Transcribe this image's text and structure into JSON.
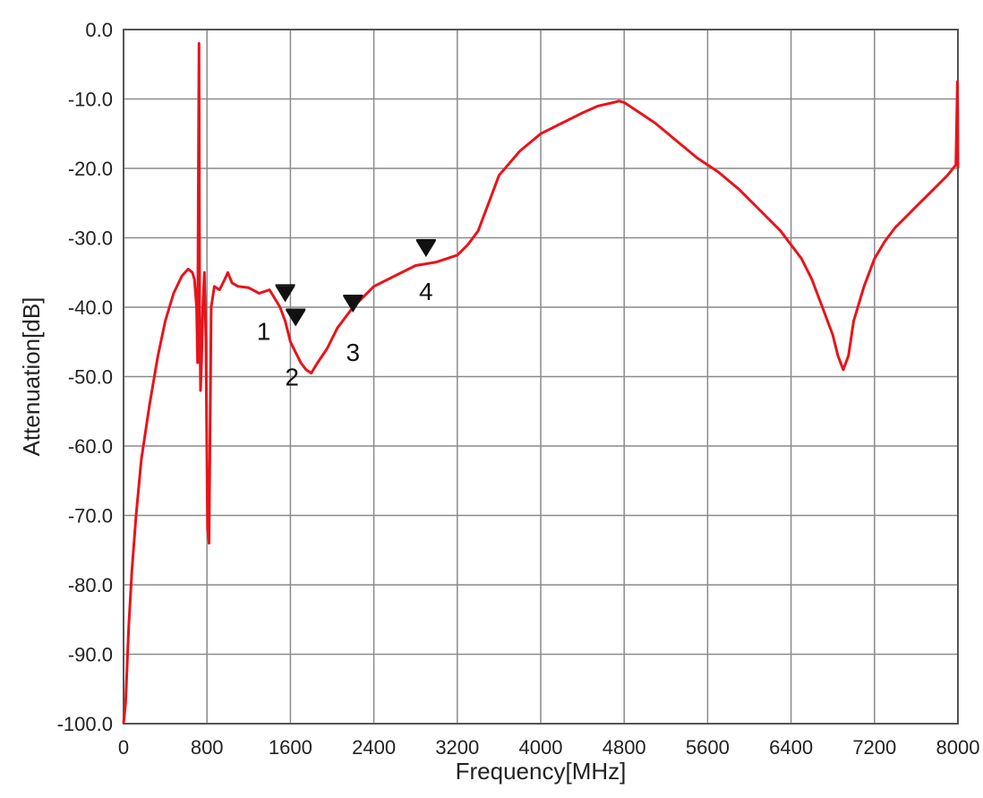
{
  "chart_data": {
    "type": "line",
    "title": "",
    "xlabel": "Frequency[MHz]",
    "ylabel": "Attenuation[dB]",
    "xlim": [
      0,
      8000
    ],
    "ylim": [
      -100,
      0
    ],
    "grid": true,
    "x_ticks": [
      "0",
      "800",
      "1600",
      "2400",
      "3200",
      "4000",
      "4800",
      "5600",
      "6400",
      "7200",
      "8000"
    ],
    "y_ticks": [
      "0.0",
      "-10.0",
      "-20.0",
      "-30.0",
      "-40.0",
      "-50.0",
      "-60.0",
      "-70.0",
      "-80.0",
      "-90.0",
      "-100.0"
    ],
    "line_color": "#e8141b",
    "series": [
      {
        "x": [
          0,
          20,
          50,
          80,
          120,
          170,
          250,
          330,
          400,
          480,
          560,
          620,
          660,
          680,
          700,
          710,
          718,
          724,
          730,
          738,
          748,
          760,
          775,
          790,
          805,
          820,
          840,
          870,
          920,
          970,
          1000,
          1040,
          1100,
          1200,
          1300,
          1400,
          1500,
          1550,
          1600,
          1650,
          1700,
          1750,
          1800,
          1860,
          1950,
          2050,
          2200,
          2400,
          2600,
          2800,
          3000,
          3200,
          3300,
          3400,
          3450,
          3500,
          3600,
          3800,
          4000,
          4200,
          4400,
          4550,
          4700,
          4750,
          4800,
          4900,
          5100,
          5300,
          5500,
          5700,
          5900,
          6100,
          6300,
          6400,
          6500,
          6600,
          6700,
          6800,
          6850,
          6900,
          6950,
          7000,
          7100,
          7200,
          7300,
          7400,
          7500,
          7600,
          7700,
          7800,
          7900,
          7980,
          7990,
          7995,
          7998,
          8000
        ],
        "y": [
          -100,
          -97,
          -86,
          -78,
          -70,
          -62,
          -54,
          -47,
          -42,
          -38,
          -35.5,
          -34.5,
          -35,
          -36,
          -40,
          -48,
          -20,
          -2,
          -40,
          -52,
          -48,
          -40,
          -35,
          -45,
          -72,
          -74,
          -40,
          -37,
          -37.5,
          -36,
          -35,
          -36.5,
          -37,
          -37.2,
          -38,
          -37.5,
          -40,
          -42,
          -45,
          -46.5,
          -48,
          -49,
          -49.5,
          -48,
          -46,
          -43,
          -40,
          -37,
          -35.5,
          -34,
          -33.5,
          -32.5,
          -31,
          -29,
          -27,
          -25,
          -21,
          -17.5,
          -15,
          -13.5,
          -12,
          -11,
          -10.5,
          -10.3,
          -10.5,
          -11.5,
          -13.5,
          -16,
          -18.5,
          -20.5,
          -23,
          -26,
          -29,
          -31,
          -33,
          -36,
          -40,
          -44,
          -47,
          -49,
          -47,
          -42,
          -37,
          -33,
          -30.5,
          -28.5,
          -27,
          -25.5,
          -24,
          -22.5,
          -21,
          -19.5,
          -12,
          -7.5,
          -12,
          -20
        ]
      }
    ],
    "markers": [
      {
        "label": "1",
        "x": 1550,
        "y": -38.5
      },
      {
        "label": "2",
        "x": 1650,
        "y": -42
      },
      {
        "label": "3",
        "x": 2200,
        "y": -40
      },
      {
        "label": "4",
        "x": 2900,
        "y": -32
      }
    ]
  }
}
